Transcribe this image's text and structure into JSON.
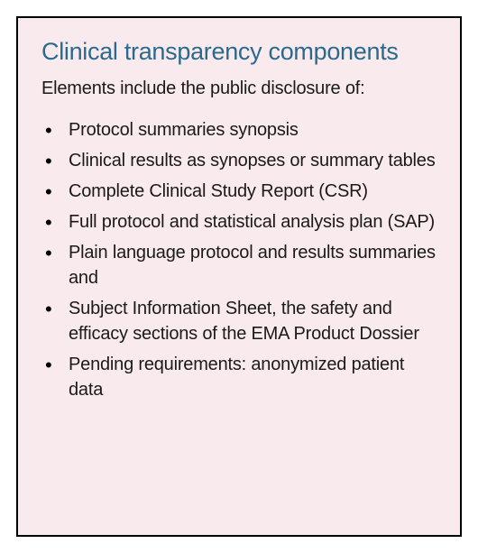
{
  "card": {
    "background_color": "#f9eaee",
    "border_color": "#000000",
    "title": {
      "text": "Clinical transparency components",
      "color": "#2a6a8e",
      "fontsize": 27
    },
    "intro": {
      "text": "Elements include the public disclosure of:",
      "color": "#1a1a1a",
      "fontsize": 20
    },
    "items": [
      "Protocol summaries synopsis",
      "Clinical results as synopses or summary tables",
      "Complete Clinical Study Report (CSR)",
      "Full protocol and statistical analysis plan (SAP)",
      "Plain language protocol and results summaries and",
      "Subject Information Sheet, the safety and efficacy sections of the EMA Product Dossier",
      "Pending requirements: anonymized patient data"
    ],
    "bullet_color": "#000000",
    "item_fontsize": 20
  }
}
